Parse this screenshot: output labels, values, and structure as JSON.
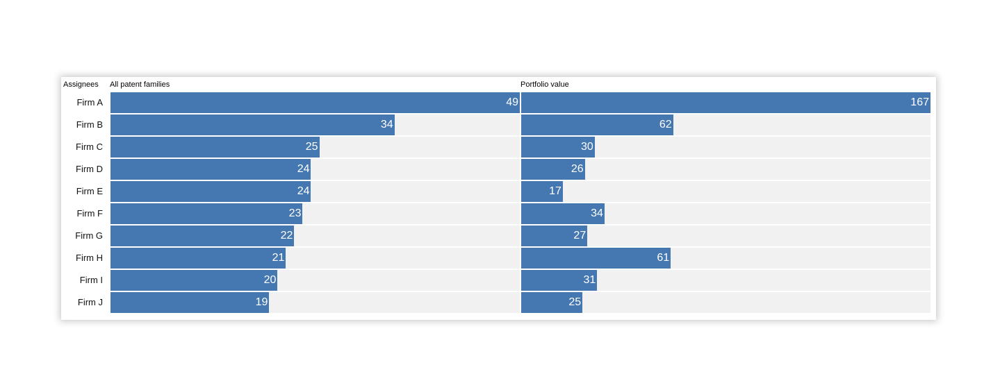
{
  "headers": {
    "assignees": "Assignees",
    "col1": "All patent families",
    "col2": "Portfolio value"
  },
  "colors": {
    "bar": "#4577b1",
    "track": "#f1f1f1"
  },
  "chart_data": {
    "type": "bar",
    "orientation": "horizontal",
    "categories": [
      "Firm A",
      "Firm B",
      "Firm C",
      "Firm D",
      "Firm E",
      "Firm F",
      "Firm G",
      "Firm H",
      "Firm I",
      "Firm J"
    ],
    "series": [
      {
        "name": "All patent families",
        "values": [
          49,
          34,
          25,
          24,
          24,
          23,
          22,
          21,
          20,
          19
        ],
        "max": 49
      },
      {
        "name": "Portfolio value",
        "values": [
          167,
          62,
          30,
          26,
          17,
          34,
          27,
          61,
          31,
          25
        ],
        "max": 167
      }
    ]
  }
}
